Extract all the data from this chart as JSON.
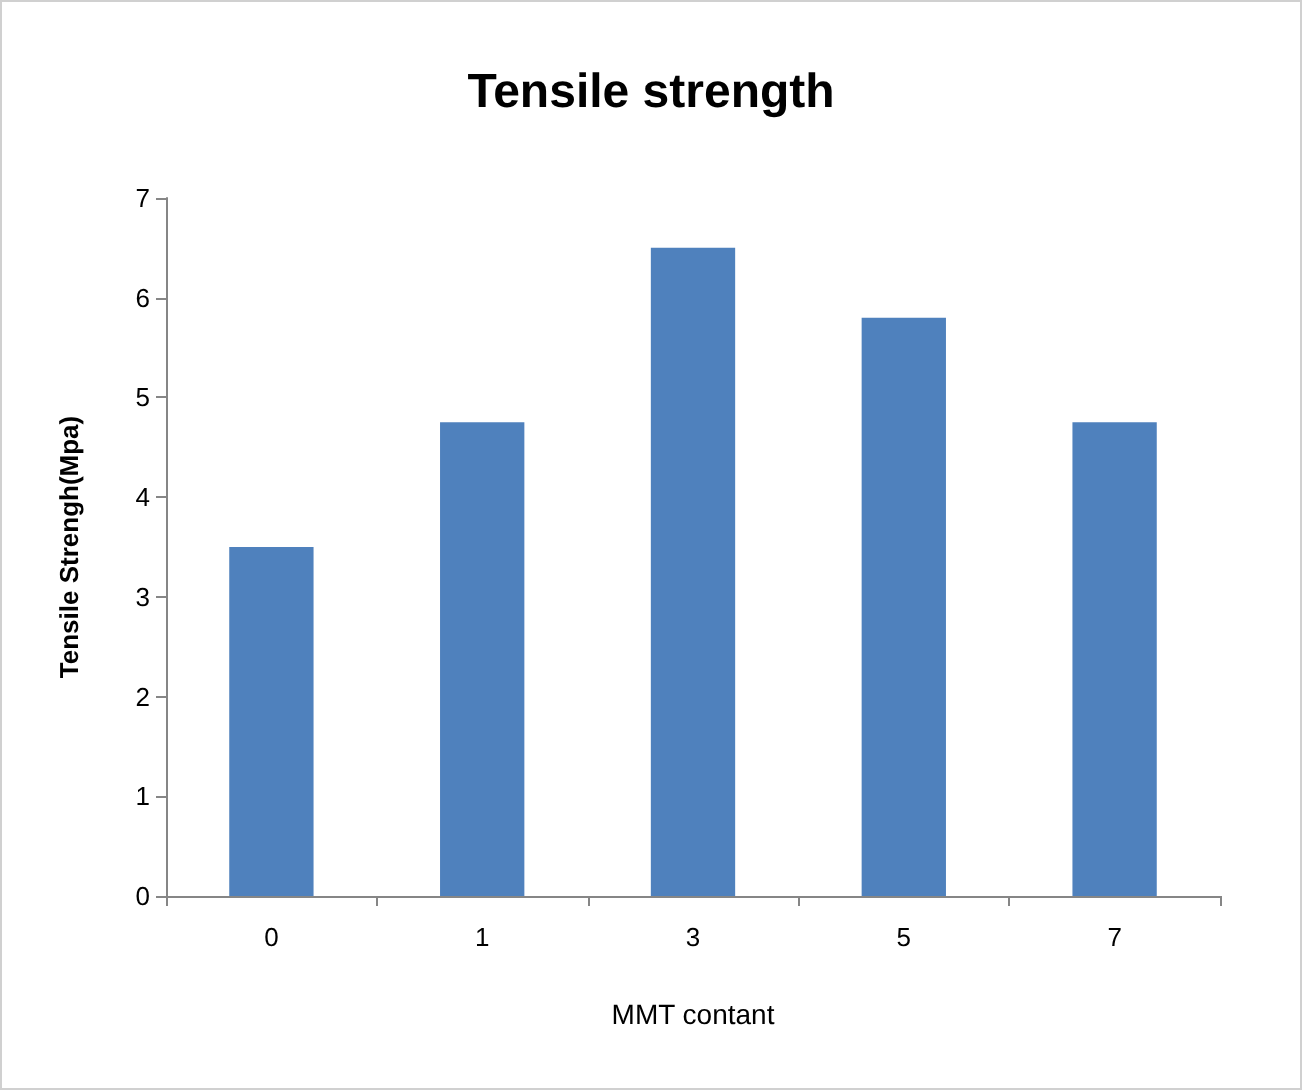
{
  "chart_data": {
    "type": "bar",
    "title": "Tensile strength",
    "xlabel": "MMT contant",
    "ylabel": "Tensile Strengh(Mpa)",
    "categories": [
      "0",
      "1",
      "3",
      "5",
      "7"
    ],
    "values": [
      3.5,
      4.75,
      6.5,
      5.8,
      4.75
    ],
    "color": "#4f81bd",
    "ylim": [
      0,
      7
    ],
    "yticks": [
      0,
      1,
      2,
      3,
      4,
      5,
      6,
      7
    ],
    "grid": false
  }
}
